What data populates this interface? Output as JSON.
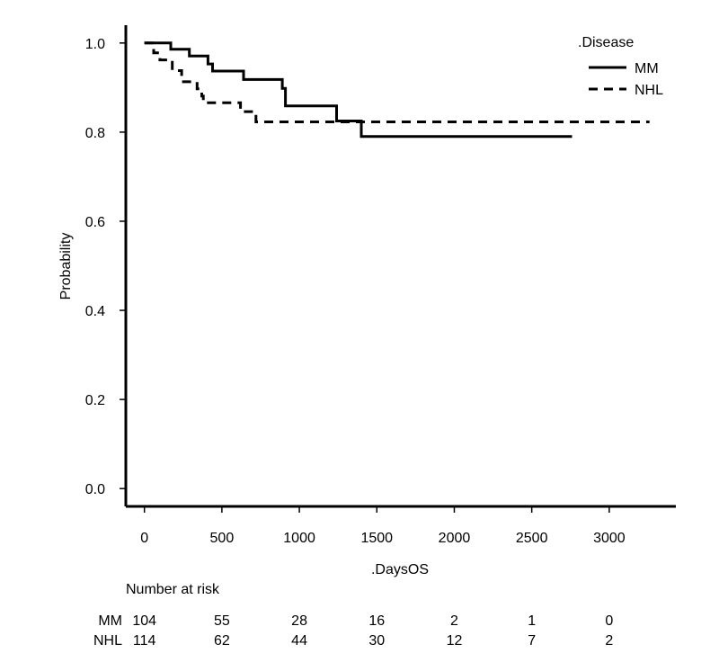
{
  "chart_data": {
    "type": "line",
    "subtype": "kaplan-meier",
    "xlabel": ".DaysOS",
    "ylabel": "Probability",
    "xlim": [
      -120,
      3430
    ],
    "ylim": [
      -0.04,
      1.04
    ],
    "xticks": [
      "0",
      "500",
      "1000",
      "1500",
      "2000",
      "2500",
      "3000"
    ],
    "yticks": [
      "0.0",
      "0.2",
      "0.4",
      "0.6",
      "0.8",
      "1.0"
    ],
    "grid": false,
    "legend": {
      "title": ".Disease",
      "placement": "top-right"
    },
    "series": [
      {
        "name": "MM",
        "style": "solid",
        "color": "#000000",
        "points": [
          [
            0,
            1.0
          ],
          [
            170,
            1.0
          ],
          [
            170,
            0.986
          ],
          [
            290,
            0.986
          ],
          [
            290,
            0.971
          ],
          [
            410,
            0.971
          ],
          [
            410,
            0.953
          ],
          [
            440,
            0.953
          ],
          [
            440,
            0.937
          ],
          [
            640,
            0.937
          ],
          [
            640,
            0.918
          ],
          [
            890,
            0.918
          ],
          [
            890,
            0.898
          ],
          [
            910,
            0.898
          ],
          [
            910,
            0.859
          ],
          [
            1240,
            0.859
          ],
          [
            1240,
            0.825
          ],
          [
            1400,
            0.825
          ],
          [
            1400,
            0.79
          ],
          [
            2760,
            0.79
          ]
        ]
      },
      {
        "name": "NHL",
        "style": "dashed",
        "color": "#000000",
        "points": [
          [
            0,
            1.0
          ],
          [
            60,
            1.0
          ],
          [
            60,
            0.978
          ],
          [
            100,
            0.978
          ],
          [
            100,
            0.962
          ],
          [
            180,
            0.962
          ],
          [
            180,
            0.938
          ],
          [
            240,
            0.938
          ],
          [
            240,
            0.913
          ],
          [
            340,
            0.913
          ],
          [
            340,
            0.897
          ],
          [
            370,
            0.897
          ],
          [
            370,
            0.881
          ],
          [
            380,
            0.881
          ],
          [
            380,
            0.866
          ],
          [
            620,
            0.866
          ],
          [
            620,
            0.846
          ],
          [
            720,
            0.846
          ],
          [
            720,
            0.823
          ],
          [
            3260,
            0.823
          ]
        ]
      }
    ],
    "risk_table": {
      "title": "Number at risk",
      "rows": [
        {
          "label": "MM",
          "values": [
            "104",
            "55",
            "28",
            "16",
            "2",
            "1",
            "0"
          ]
        },
        {
          "label": "NHL",
          "values": [
            "114",
            "62",
            "44",
            "30",
            "12",
            "7",
            "2"
          ]
        }
      ]
    }
  }
}
